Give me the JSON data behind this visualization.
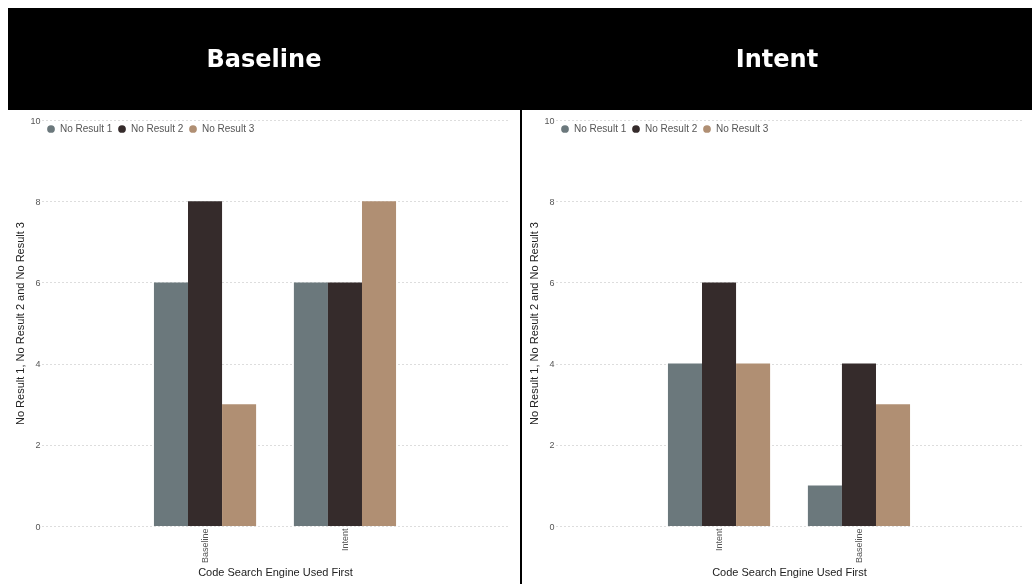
{
  "chart_data": [
    {
      "type": "bar",
      "title": "Baseline",
      "categories": [
        "Baseline",
        "Intent"
      ],
      "xlabel": "Code Search Engine Used First",
      "ylabel": "No Result 1, No Result 2 and No Result 3",
      "ylim": [
        0,
        10
      ],
      "yticks": [
        0,
        2,
        4,
        6,
        8,
        10
      ],
      "grid": "y",
      "legend": "top left",
      "series": [
        {
          "name": "No Result 1",
          "color": "#6b787c",
          "values": [
            6,
            6
          ]
        },
        {
          "name": "No Result 2",
          "color": "#352b2b",
          "values": [
            8,
            6
          ]
        },
        {
          "name": "No Result 3",
          "color": "#b08f73",
          "values": [
            3,
            8
          ]
        }
      ]
    },
    {
      "type": "bar",
      "title": "Intent",
      "categories": [
        "Intent",
        "Baseline"
      ],
      "xlabel": "Code Search Engine Used First",
      "ylabel": "No Result 1, No Result 2 and No Result 3",
      "ylim": [
        0,
        10
      ],
      "yticks": [
        0,
        2,
        4,
        6,
        8,
        10
      ],
      "grid": "y",
      "legend": "top left",
      "series": [
        {
          "name": "No Result 1",
          "color": "#6b787c",
          "values": [
            4,
            1
          ]
        },
        {
          "name": "No Result 2",
          "color": "#352b2b",
          "values": [
            6,
            4
          ]
        },
        {
          "name": "No Result 3",
          "color": "#b08f73",
          "values": [
            4,
            3
          ]
        }
      ]
    }
  ]
}
